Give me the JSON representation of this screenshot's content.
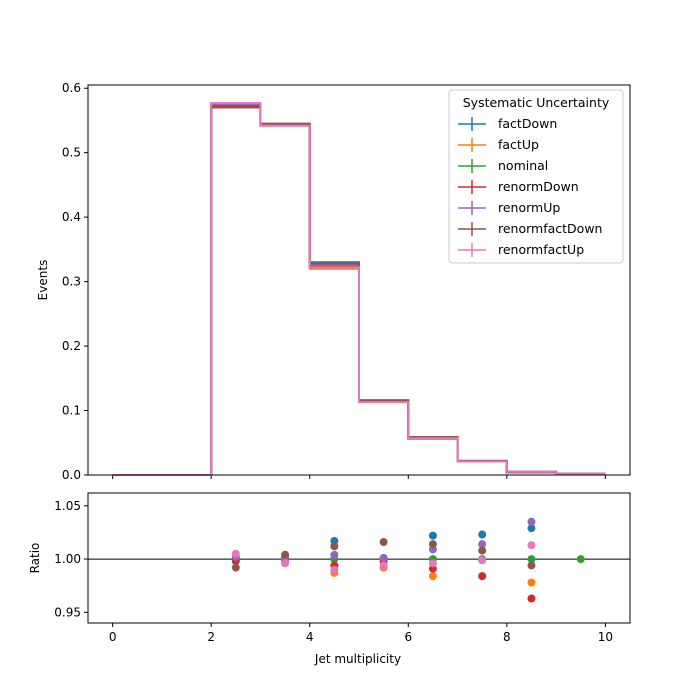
{
  "chart_data": [
    {
      "type": "step",
      "panel": "main",
      "ylabel": "Events",
      "xlim": [
        -0.5,
        10.5
      ],
      "ylim": [
        0,
        0.605
      ],
      "yticks": [
        "0.0",
        "0.1",
        "0.2",
        "0.3",
        "0.4",
        "0.5",
        "0.6"
      ],
      "bin_edges": [
        0,
        1,
        2,
        3,
        4,
        5,
        6,
        7,
        8,
        9,
        10
      ],
      "legend": {
        "title": "Systematic Uncertainty",
        "placement": "top-right"
      },
      "series": [
        {
          "name": "factDown",
          "color": "#1f77b4",
          "values": [
            0,
            0,
            0.572,
            0.544,
            0.33,
            0.116,
            0.059,
            0.022,
            0.005,
            0.002
          ]
        },
        {
          "name": "factUp",
          "color": "#ff7f0e",
          "values": [
            0,
            0,
            0.575,
            0.542,
            0.32,
            0.113,
            0.056,
            0.021,
            0.004,
            0.002
          ]
        },
        {
          "name": "nominal",
          "color": "#2ca02c",
          "values": [
            0,
            0,
            0.574,
            0.543,
            0.325,
            0.114,
            0.058,
            0.021,
            0.005,
            0.002
          ]
        },
        {
          "name": "renormDown",
          "color": "#d62728",
          "values": [
            0,
            0,
            0.573,
            0.543,
            0.323,
            0.114,
            0.057,
            0.021,
            0.004,
            0.002
          ]
        },
        {
          "name": "renormUp",
          "color": "#9467bd",
          "values": [
            0,
            0,
            0.575,
            0.542,
            0.326,
            0.114,
            0.058,
            0.021,
            0.005,
            0.002
          ]
        },
        {
          "name": "renormfactDown",
          "color": "#8c564b",
          "values": [
            0,
            0,
            0.57,
            0.545,
            0.328,
            0.116,
            0.059,
            0.022,
            0.005,
            0.002
          ]
        },
        {
          "name": "renormfactUp",
          "color": "#e377c2",
          "values": [
            0,
            0,
            0.577,
            0.542,
            0.322,
            0.113,
            0.057,
            0.021,
            0.005,
            0.002
          ]
        }
      ]
    },
    {
      "type": "scatter",
      "panel": "ratio",
      "xlabel": "Jet multiplicity",
      "ylabel": "Ratio",
      "xlim": [
        -0.5,
        10.5
      ],
      "ylim": [
        0.94,
        1.062
      ],
      "xticks": [
        "0",
        "2",
        "4",
        "6",
        "8",
        "10"
      ],
      "yticks": [
        "0.95",
        "1.00",
        "1.05"
      ],
      "reference_line": 1.0,
      "series": [
        {
          "name": "factDown",
          "color": "#1f77b4",
          "x": [
            2.5,
            3.5,
            4.5,
            5.5,
            6.5,
            7.5,
            8.5
          ],
          "y": [
            0.998,
            1.001,
            1.017,
            1.001,
            1.022,
            1.023,
            1.029
          ]
        },
        {
          "name": "factUp",
          "color": "#ff7f0e",
          "x": [
            2.5,
            3.5,
            4.5,
            5.5,
            6.5,
            7.5,
            8.5
          ],
          "y": [
            1.002,
            0.998,
            0.987,
            0.992,
            0.984,
            0.999,
            0.978
          ]
        },
        {
          "name": "nominal",
          "color": "#2ca02c",
          "x": [
            2.5,
            3.5,
            4.5,
            5.5,
            6.5,
            7.5,
            8.5,
            9.5
          ],
          "y": [
            1.0,
            1.0,
            1.0,
            1.0,
            1.0,
            1.0,
            1.0,
            1.0
          ]
        },
        {
          "name": "renormDown",
          "color": "#d62728",
          "x": [
            2.5,
            3.5,
            4.5,
            5.5,
            6.5,
            7.5,
            8.5
          ],
          "y": [
            0.999,
            1.0,
            0.994,
            0.998,
            0.991,
            0.984,
            0.963
          ]
        },
        {
          "name": "renormUp",
          "color": "#9467bd",
          "x": [
            2.5,
            3.5,
            4.5,
            5.5,
            6.5,
            7.5,
            8.5
          ],
          "y": [
            1.002,
            0.999,
            1.004,
            1.001,
            1.009,
            1.014,
            1.035
          ]
        },
        {
          "name": "renormfactDown",
          "color": "#8c564b",
          "x": [
            2.5,
            3.5,
            4.5,
            5.5,
            6.5,
            7.5,
            8.5
          ],
          "y": [
            0.992,
            1.004,
            1.012,
            1.016,
            1.014,
            1.008,
            0.994
          ]
        },
        {
          "name": "renormfactUp",
          "color": "#e377c2",
          "x": [
            2.5,
            3.5,
            4.5,
            5.5,
            6.5,
            7.5,
            8.5
          ],
          "y": [
            1.005,
            0.996,
            0.99,
            0.994,
            0.996,
            0.999,
            1.013
          ]
        }
      ]
    }
  ]
}
